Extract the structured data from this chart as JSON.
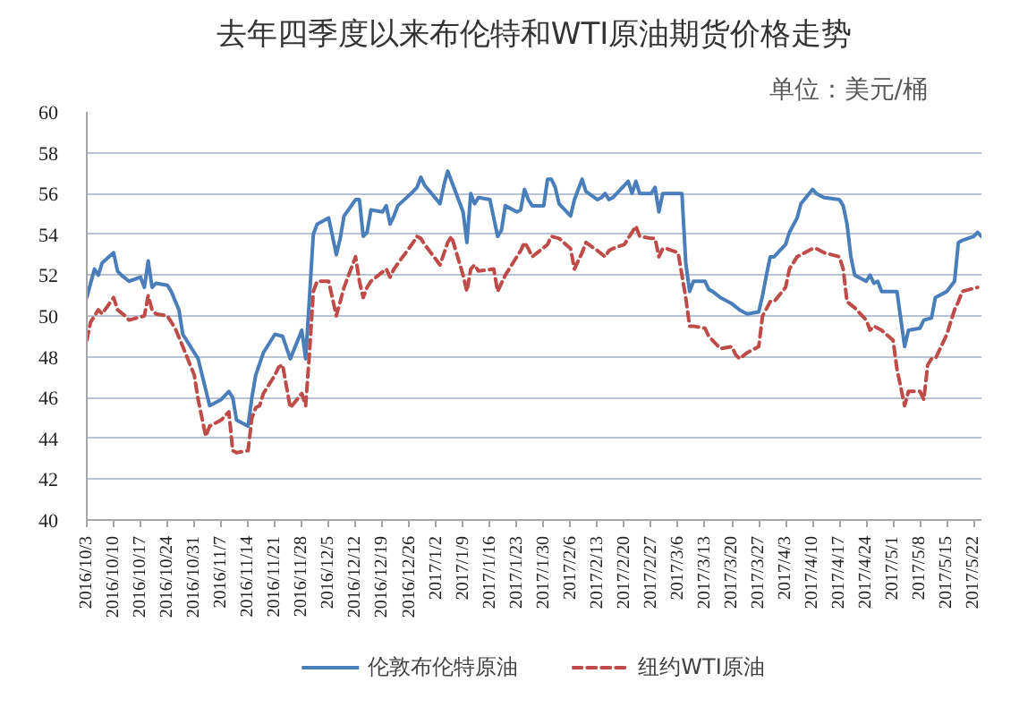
{
  "chart_data": {
    "type": "line",
    "title": "去年四季度以来布伦特和WTI原油期货价格走势",
    "annotations": [
      "单位：美元/桶"
    ],
    "xlim": [
      "2016-10-03",
      "2017-05-24"
    ],
    "xticks": [
      {
        "value": "2016-10-03",
        "label": "2016/10/3"
      },
      {
        "value": "2016-10-10",
        "label": "2016/10/10"
      },
      {
        "value": "2016-10-17",
        "label": "2016/10/17"
      },
      {
        "value": "2016-10-24",
        "label": "2016/10/24"
      },
      {
        "value": "2016-10-31",
        "label": "2016/10/31"
      },
      {
        "value": "2016-11-07",
        "label": "2016/11/7"
      },
      {
        "value": "2016-11-14",
        "label": "2016/11/14"
      },
      {
        "value": "2016-11-21",
        "label": "2016/11/21"
      },
      {
        "value": "2016-11-28",
        "label": "2016/11/28"
      },
      {
        "value": "2016-12-05",
        "label": "2016/12/5"
      },
      {
        "value": "2016-12-12",
        "label": "2016/12/12"
      },
      {
        "value": "2016-12-19",
        "label": "2016/12/19"
      },
      {
        "value": "2016-12-26",
        "label": "2016/12/26"
      },
      {
        "value": "2017-01-02",
        "label": "2017/1/2"
      },
      {
        "value": "2017-01-09",
        "label": "2017/1/9"
      },
      {
        "value": "2017-01-16",
        "label": "2017/1/16"
      },
      {
        "value": "2017-01-23",
        "label": "2017/1/23"
      },
      {
        "value": "2017-01-30",
        "label": "2017/1/30"
      },
      {
        "value": "2017-02-06",
        "label": "2017/2/6"
      },
      {
        "value": "2017-02-13",
        "label": "2017/2/13"
      },
      {
        "value": "2017-02-20",
        "label": "2017/2/20"
      },
      {
        "value": "2017-02-27",
        "label": "2017/2/27"
      },
      {
        "value": "2017-03-06",
        "label": "2017/3/6"
      },
      {
        "value": "2017-03-13",
        "label": "2017/3/13"
      },
      {
        "value": "2017-03-20",
        "label": "2017/3/20"
      },
      {
        "value": "2017-03-27",
        "label": "2017/3/27"
      },
      {
        "value": "2017-04-03",
        "label": "2017/4/3"
      },
      {
        "value": "2017-04-10",
        "label": "2017/4/10"
      },
      {
        "value": "2017-04-17",
        "label": "2017/4/17"
      },
      {
        "value": "2017-04-24",
        "label": "2017/4/24"
      },
      {
        "value": "2017-05-01",
        "label": "2017/5/1"
      },
      {
        "value": "2017-05-08",
        "label": "2017/5/8"
      },
      {
        "value": "2017-05-15",
        "label": "2017/5/15"
      },
      {
        "value": "2017-05-22",
        "label": "2017/5/22"
      }
    ],
    "ylim": [
      40,
      60
    ],
    "yticks": [
      40,
      42,
      44,
      46,
      48,
      50,
      52,
      54,
      56,
      58,
      60
    ],
    "grid": "y",
    "legend": "bottom",
    "series": [
      {
        "name": "伦敦布伦特原油",
        "color": "#4a7ebb",
        "line_style": "solid",
        "x": [
          "2016-10-03",
          "2016-10-05",
          "2016-10-06",
          "2016-10-07",
          "2016-10-10",
          "2016-10-11",
          "2016-10-12",
          "2016-10-14",
          "2016-10-17",
          "2016-10-18",
          "2016-10-19",
          "2016-10-20",
          "2016-10-21",
          "2016-10-24",
          "2016-10-25",
          "2016-10-27",
          "2016-10-28",
          "2016-11-01",
          "2016-11-04",
          "2016-11-07",
          "2016-11-09",
          "2016-11-10",
          "2016-11-11",
          "2016-11-14",
          "2016-11-15",
          "2016-11-16",
          "2016-11-18",
          "2016-11-21",
          "2016-11-23",
          "2016-11-25",
          "2016-11-28",
          "2016-11-29",
          "2016-11-30",
          "2016-12-01",
          "2016-12-02",
          "2016-12-05",
          "2016-12-07",
          "2016-12-08",
          "2016-12-09",
          "2016-12-12",
          "2016-12-13",
          "2016-12-14",
          "2016-12-15",
          "2016-12-16",
          "2016-12-19",
          "2016-12-20",
          "2016-12-21",
          "2016-12-22",
          "2016-12-23",
          "2016-12-27",
          "2016-12-28",
          "2016-12-29",
          "2016-12-30",
          "2017-01-03",
          "2017-01-04",
          "2017-01-05",
          "2017-01-06",
          "2017-01-09",
          "2017-01-10",
          "2017-01-11",
          "2017-01-12",
          "2017-01-13",
          "2017-01-16",
          "2017-01-18",
          "2017-01-19",
          "2017-01-20",
          "2017-01-23",
          "2017-01-24",
          "2017-01-25",
          "2017-01-26",
          "2017-01-27",
          "2017-01-30",
          "2017-01-31",
          "2017-02-01",
          "2017-02-02",
          "2017-02-03",
          "2017-02-06",
          "2017-02-07",
          "2017-02-09",
          "2017-02-10",
          "2017-02-13",
          "2017-02-14",
          "2017-02-15",
          "2017-02-16",
          "2017-02-17",
          "2017-02-21",
          "2017-02-22",
          "2017-02-23",
          "2017-02-24",
          "2017-02-27",
          "2017-02-28",
          "2017-03-01",
          "2017-03-02",
          "2017-03-03",
          "2017-03-06",
          "2017-03-07",
          "2017-03-08",
          "2017-03-09",
          "2017-03-10",
          "2017-03-13",
          "2017-03-14",
          "2017-03-15",
          "2017-03-17",
          "2017-03-20",
          "2017-03-22",
          "2017-03-24",
          "2017-03-27",
          "2017-03-28",
          "2017-03-29",
          "2017-03-30",
          "2017-03-31",
          "2017-04-03",
          "2017-04-04",
          "2017-04-06",
          "2017-04-07",
          "2017-04-10",
          "2017-04-11",
          "2017-04-13",
          "2017-04-17",
          "2017-04-18",
          "2017-04-19",
          "2017-04-20",
          "2017-04-21",
          "2017-04-24",
          "2017-04-25",
          "2017-04-26",
          "2017-04-27",
          "2017-04-28",
          "2017-05-02",
          "2017-05-04",
          "2017-05-05",
          "2017-05-08",
          "2017-05-09",
          "2017-05-11",
          "2017-05-12",
          "2017-05-15",
          "2017-05-17",
          "2017-05-18",
          "2017-05-19",
          "2017-05-22",
          "2017-05-23",
          "2017-05-24"
        ],
        "values": [
          50.9,
          52.3,
          52.0,
          52.6,
          53.1,
          52.2,
          52.0,
          51.7,
          51.9,
          51.4,
          52.7,
          51.4,
          51.6,
          51.5,
          51.2,
          50.3,
          49.1,
          47.9,
          45.6,
          45.9,
          46.3,
          46.0,
          44.9,
          44.6,
          46.0,
          47.1,
          48.2,
          49.1,
          49.0,
          47.9,
          49.3,
          47.9,
          50.9,
          54.0,
          54.5,
          54.8,
          53.0,
          53.8,
          54.9,
          55.7,
          55.7,
          53.9,
          54.1,
          55.2,
          55.1,
          55.4,
          54.5,
          54.9,
          55.4,
          56.1,
          56.3,
          56.8,
          56.4,
          55.5,
          56.4,
          57.1,
          56.6,
          55.1,
          53.6,
          56.0,
          55.5,
          55.8,
          55.7,
          53.9,
          54.2,
          55.4,
          55.1,
          55.2,
          56.2,
          55.7,
          55.4,
          55.4,
          56.7,
          56.7,
          56.3,
          55.5,
          54.9,
          55.7,
          56.7,
          56.1,
          55.7,
          55.8,
          56.0,
          55.7,
          55.8,
          56.6,
          56.0,
          56.6,
          56.0,
          56.0,
          56.3,
          55.1,
          56.0,
          56.0,
          56.0,
          56.0,
          52.6,
          51.2,
          51.7,
          51.7,
          51.3,
          51.2,
          50.9,
          50.6,
          50.3,
          50.1,
          50.2,
          51.0,
          52.0,
          52.9,
          52.9,
          53.5,
          54.1,
          54.8,
          55.5,
          56.2,
          56.0,
          55.8,
          55.7,
          55.4,
          54.5,
          52.9,
          52.0,
          51.7,
          52.0,
          51.6,
          51.7,
          51.2,
          51.2,
          48.5,
          49.3,
          49.4,
          49.8,
          49.9,
          50.9,
          51.2,
          51.7,
          53.6,
          53.7,
          53.9,
          54.1,
          53.9
        ]
      },
      {
        "name": "纽约WTI原油",
        "color": "#be4b48",
        "line_style": "dashed",
        "x": [
          "2016-10-03",
          "2016-10-04",
          "2016-10-06",
          "2016-10-07",
          "2016-10-10",
          "2016-10-11",
          "2016-10-13",
          "2016-10-14",
          "2016-10-18",
          "2016-10-19",
          "2016-10-20",
          "2016-10-21",
          "2016-10-24",
          "2016-10-26",
          "2016-10-28",
          "2016-10-31",
          "2016-11-01",
          "2016-11-03",
          "2016-11-04",
          "2016-11-07",
          "2016-11-09",
          "2016-11-10",
          "2016-11-11",
          "2016-11-14",
          "2016-11-15",
          "2016-11-16",
          "2016-11-17",
          "2016-11-18",
          "2016-11-21",
          "2016-11-22",
          "2016-11-23",
          "2016-11-25",
          "2016-11-28",
          "2016-11-29",
          "2016-11-30",
          "2016-12-01",
          "2016-12-02",
          "2016-12-05",
          "2016-12-07",
          "2016-12-08",
          "2016-12-09",
          "2016-12-12",
          "2016-12-13",
          "2016-12-14",
          "2016-12-15",
          "2016-12-16",
          "2016-12-20",
          "2016-12-21",
          "2016-12-22",
          "2016-12-27",
          "2016-12-28",
          "2016-12-29",
          "2016-12-30",
          "2017-01-03",
          "2017-01-05",
          "2017-01-06",
          "2017-01-09",
          "2017-01-10",
          "2017-01-11",
          "2017-01-12",
          "2017-01-13",
          "2017-01-17",
          "2017-01-18",
          "2017-01-20",
          "2017-01-23",
          "2017-01-24",
          "2017-01-25",
          "2017-01-26",
          "2017-01-27",
          "2017-01-31",
          "2017-02-01",
          "2017-02-03",
          "2017-02-06",
          "2017-02-07",
          "2017-02-09",
          "2017-02-10",
          "2017-02-13",
          "2017-02-15",
          "2017-02-16",
          "2017-02-17",
          "2017-02-20",
          "2017-02-21",
          "2017-02-22",
          "2017-02-23",
          "2017-02-24",
          "2017-02-27",
          "2017-02-28",
          "2017-03-01",
          "2017-03-02",
          "2017-03-03",
          "2017-03-06",
          "2017-03-08",
          "2017-03-09",
          "2017-03-10",
          "2017-03-13",
          "2017-03-14",
          "2017-03-15",
          "2017-03-17",
          "2017-03-20",
          "2017-03-21",
          "2017-03-22",
          "2017-03-24",
          "2017-03-27",
          "2017-03-28",
          "2017-03-30",
          "2017-03-31",
          "2017-04-03",
          "2017-04-04",
          "2017-04-06",
          "2017-04-10",
          "2017-04-11",
          "2017-04-13",
          "2017-04-17",
          "2017-04-18",
          "2017-04-19",
          "2017-04-21",
          "2017-04-24",
          "2017-04-25",
          "2017-04-26",
          "2017-04-28",
          "2017-05-01",
          "2017-05-02",
          "2017-05-04",
          "2017-05-05",
          "2017-05-08",
          "2017-05-09",
          "2017-05-10",
          "2017-05-11",
          "2017-05-12",
          "2017-05-15",
          "2017-05-17",
          "2017-05-18",
          "2017-05-19",
          "2017-05-23"
        ],
        "values": [
          48.8,
          49.7,
          50.3,
          50.1,
          50.9,
          50.3,
          50.0,
          49.8,
          50.0,
          51.0,
          50.3,
          50.1,
          50.0,
          49.4,
          48.5,
          47.1,
          45.9,
          44.1,
          44.6,
          44.9,
          45.3,
          43.4,
          43.3,
          43.4,
          45.0,
          45.5,
          45.6,
          46.2,
          47.1,
          47.5,
          47.6,
          45.5,
          46.2,
          45.6,
          48.2,
          51.2,
          51.7,
          51.7,
          50.0,
          50.7,
          51.4,
          52.9,
          51.7,
          50.9,
          51.4,
          51.7,
          52.3,
          51.9,
          52.3,
          53.6,
          53.9,
          53.8,
          53.5,
          52.5,
          53.6,
          53.9,
          52.0,
          51.2,
          52.3,
          52.5,
          52.2,
          52.3,
          51.2,
          52.0,
          52.9,
          53.2,
          53.6,
          53.3,
          52.9,
          53.5,
          53.9,
          53.8,
          53.3,
          52.3,
          53.1,
          53.6,
          53.2,
          52.9,
          53.2,
          53.3,
          53.5,
          53.8,
          54.1,
          54.4,
          53.9,
          53.8,
          53.8,
          52.9,
          53.3,
          53.3,
          53.1,
          50.9,
          49.5,
          49.5,
          49.4,
          49.0,
          48.8,
          48.4,
          48.5,
          48.1,
          47.9,
          48.2,
          48.5,
          50.0,
          50.7,
          50.7,
          51.4,
          52.3,
          52.9,
          53.3,
          53.3,
          53.1,
          52.9,
          52.3,
          50.7,
          50.4,
          49.8,
          49.3,
          49.5,
          49.3,
          48.8,
          47.4,
          45.6,
          46.3,
          46.3,
          45.9,
          47.6,
          47.9,
          47.9,
          49.1,
          50.3,
          50.7,
          51.2,
          51.4
        ]
      }
    ]
  }
}
